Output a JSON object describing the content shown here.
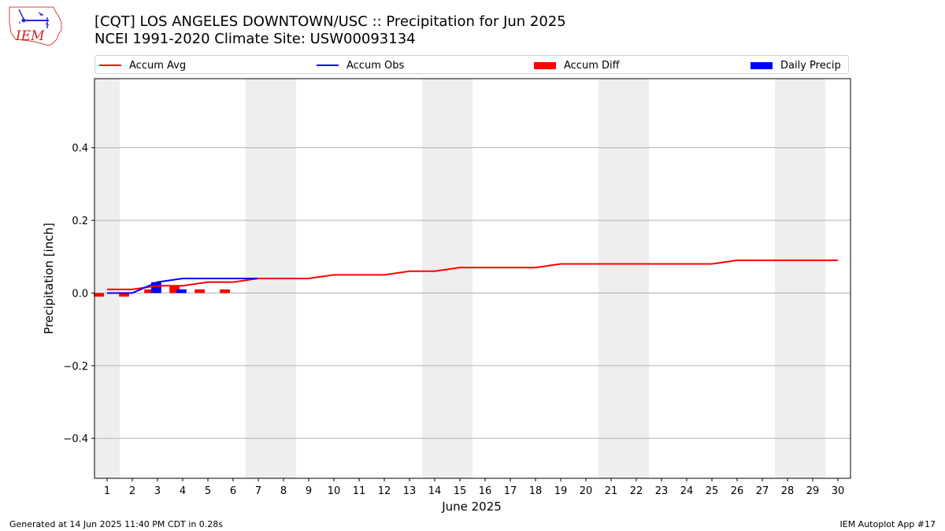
{
  "logo": {
    "text": "IEM",
    "icon": "iem-logo-icon"
  },
  "titles": {
    "line1": "[CQT] LOS ANGELES DOWNTOWN/USC :: Precipitation for Jun 2025",
    "line2": "NCEI 1991-2020 Climate Site: USW00093134"
  },
  "legend": {
    "accum_avg": "Accum Avg",
    "accum_obs": "Accum Obs",
    "accum_diff": "Accum Diff",
    "daily_precip": "Daily Precip"
  },
  "footer": {
    "left": "Generated at 14 Jun 2025 11:40 PM CDT in 0.28s",
    "right": "IEM Autoplot App #17"
  },
  "colors": {
    "avg": "#ff0000",
    "obs": "#0000ff",
    "diff": "#ff0000",
    "precip": "#0000ff",
    "weekend": "#eeeeee"
  },
  "chart_data": {
    "type": "line",
    "xlabel": "June 2025",
    "ylabel": "Precipitation [inch]",
    "xlim": [
      0.5,
      30.5
    ],
    "ylim": [
      -0.51,
      0.59
    ],
    "yticks": [
      -0.4,
      -0.2,
      0.0,
      0.2,
      0.4
    ],
    "ytick_labels": [
      "−0.4",
      "−0.2",
      "0.0",
      "0.2",
      "0.4"
    ],
    "xticks": [
      1,
      2,
      3,
      4,
      5,
      6,
      7,
      8,
      9,
      10,
      11,
      12,
      13,
      14,
      15,
      16,
      17,
      18,
      19,
      20,
      21,
      22,
      23,
      24,
      25,
      26,
      27,
      28,
      29,
      30
    ],
    "grid": "y",
    "legend_placement": "top",
    "weekend_days": [
      1,
      7,
      8,
      14,
      15,
      21,
      22,
      28,
      29
    ],
    "series": [
      {
        "name": "Accum Avg",
        "kind": "line",
        "x": [
          1,
          2,
          3,
          4,
          5,
          6,
          7,
          8,
          9,
          10,
          11,
          12,
          13,
          14,
          15,
          16,
          17,
          18,
          19,
          20,
          21,
          22,
          23,
          24,
          25,
          26,
          27,
          28,
          29,
          30
        ],
        "values": [
          0.01,
          0.01,
          0.02,
          0.02,
          0.03,
          0.03,
          0.04,
          0.04,
          0.04,
          0.05,
          0.05,
          0.05,
          0.06,
          0.06,
          0.07,
          0.07,
          0.07,
          0.07,
          0.08,
          0.08,
          0.08,
          0.08,
          0.08,
          0.08,
          0.08,
          0.09,
          0.09,
          0.09,
          0.09,
          0.09
        ]
      },
      {
        "name": "Accum Obs",
        "kind": "line",
        "x": [
          1,
          2,
          3,
          4,
          5,
          6,
          7
        ],
        "values": [
          0.0,
          0.0,
          0.03,
          0.04,
          0.04,
          0.04,
          0.04
        ]
      },
      {
        "name": "Accum Diff",
        "kind": "bar",
        "x": [
          1,
          2,
          3,
          4,
          5,
          6
        ],
        "values": [
          -0.01,
          -0.01,
          0.01,
          0.02,
          0.01,
          0.01
        ]
      },
      {
        "name": "Daily Precip",
        "kind": "bar",
        "x": [
          3,
          4
        ],
        "values": [
          0.03,
          0.01
        ]
      }
    ]
  }
}
